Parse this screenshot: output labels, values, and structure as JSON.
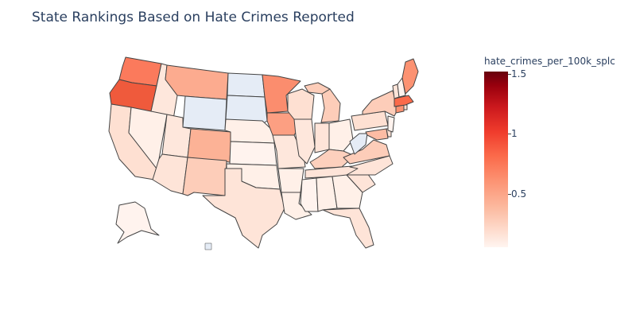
{
  "title": "State Rankings Based on Hate Crimes Reported",
  "colorbar": {
    "title": "hate_crimes_per_100k_splc",
    "ticks": [
      {
        "label": "1.5",
        "value": 1.5
      },
      {
        "label": "1",
        "value": 1.0
      },
      {
        "label": "0.5",
        "value": 0.5
      }
    ],
    "range": [
      0.07,
      1.52
    ]
  },
  "colors": {
    "low": "#fff5f0",
    "mid": "#fc9272",
    "high": "#67000d",
    "missing": "#e5ecf6",
    "border": "#444444"
  }
}
